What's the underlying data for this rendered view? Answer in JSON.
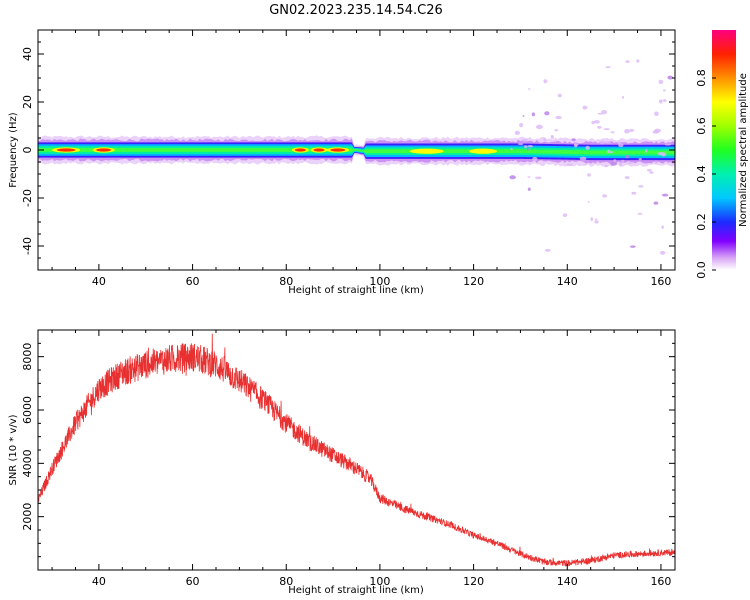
{
  "chart_data": [
    {
      "type": "heatmap",
      "title": "GN02.2023.235.14.54.C26",
      "xlabel": "Height of straight line (km)",
      "ylabel": "Frequency (Hz)",
      "xlim": [
        27,
        163
      ],
      "ylim": [
        -50,
        50
      ],
      "xticks": [
        40,
        60,
        80,
        100,
        120,
        140,
        160
      ],
      "yticks": [
        -40,
        -20,
        0,
        20,
        40
      ],
      "band": {
        "center_hz": [
          0.0,
          0.0,
          0.0,
          -0.5,
          -0.5,
          -0.5,
          -1.0,
          -1.0
        ],
        "center_x": [
          27,
          60,
          95,
          97,
          120,
          130,
          145,
          163
        ],
        "half_width_hz": 3.5,
        "note_gap_x": [
          94,
          97
        ]
      },
      "hot_spots": [
        {
          "x": 33,
          "w": 5,
          "amp": 0.85
        },
        {
          "x": 41,
          "w": 4,
          "amp": 0.8
        },
        {
          "x": 83,
          "w": 3,
          "amp": 0.78
        },
        {
          "x": 87,
          "w": 3,
          "amp": 0.85
        },
        {
          "x": 91,
          "w": 4,
          "amp": 0.88
        },
        {
          "x": 110,
          "w": 6,
          "amp": 0.72
        },
        {
          "x": 122,
          "w": 5,
          "amp": 0.65
        }
      ],
      "colorbar": {
        "label": "Normalized spectral amplitude",
        "range": [
          0,
          1
        ],
        "ticks": [
          "0.0",
          "0.2",
          "0.4",
          "0.6",
          "0.8"
        ]
      },
      "grid": false
    },
    {
      "type": "line",
      "xlabel": "Height of straight line (km)",
      "ylabel": "SNR (10 * v/v)",
      "xlim": [
        27,
        163
      ],
      "ylim": [
        0,
        9000
      ],
      "xticks": [
        40,
        60,
        80,
        100,
        120,
        140,
        160
      ],
      "yticks": [
        2000,
        4000,
        6000,
        8000
      ],
      "color": "#e83030",
      "x": [
        27,
        30,
        35,
        40,
        45,
        50,
        55,
        60,
        65,
        70,
        75,
        80,
        85,
        90,
        95,
        98,
        100,
        105,
        110,
        115,
        120,
        125,
        130,
        135,
        140,
        145,
        150,
        155,
        160,
        163
      ],
      "y": [
        2600,
        3800,
        5500,
        6800,
        7400,
        7700,
        7900,
        8000,
        7700,
        7100,
        6400,
        5500,
        4800,
        4300,
        3800,
        3400,
        2700,
        2300,
        2000,
        1700,
        1300,
        1000,
        600,
        300,
        250,
        350,
        550,
        600,
        650,
        650
      ],
      "grid": false
    }
  ]
}
